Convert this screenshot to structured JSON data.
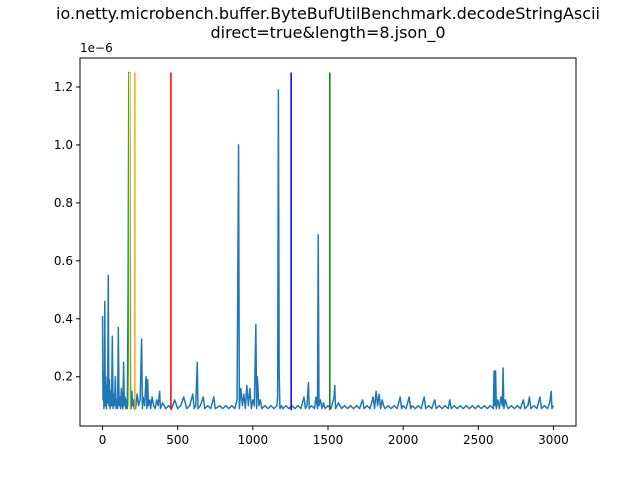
{
  "chart_data": {
    "type": "line",
    "title_lines": [
      "io.netty.microbench.buffer.ByteBufUtilBenchmark.decodeStringAscii",
      "direct=true&length=8.json_0"
    ],
    "xlabel": "",
    "ylabel": "",
    "y_offset_label": "1e−6",
    "xlim": [
      -150,
      3150
    ],
    "ylim": [
      0.03,
      1.3
    ],
    "x_ticks": [
      0,
      500,
      1000,
      1500,
      2000,
      2500,
      3000
    ],
    "x_tick_labels": [
      "0",
      "500",
      "1000",
      "1500",
      "2000",
      "2500",
      "3000"
    ],
    "y_ticks": [
      0.2,
      0.4,
      0.6,
      0.8,
      1.0,
      1.2
    ],
    "y_tick_labels": [
      "0.2",
      "0.4",
      "0.6",
      "0.8",
      "1.0",
      "1.2"
    ],
    "grid": false,
    "series": [
      {
        "color": "#1f77b4",
        "points": [
          [
            0,
            0.41
          ],
          [
            3,
            0.12
          ],
          [
            6,
            0.22
          ],
          [
            9,
            0.09
          ],
          [
            12,
            0.15
          ],
          [
            15,
            0.46
          ],
          [
            18,
            0.1
          ],
          [
            22,
            0.2
          ],
          [
            26,
            0.09
          ],
          [
            30,
            0.17
          ],
          [
            34,
            0.11
          ],
          [
            38,
            0.55
          ],
          [
            42,
            0.1
          ],
          [
            46,
            0.19
          ],
          [
            50,
            0.09
          ],
          [
            55,
            0.15
          ],
          [
            60,
            0.1
          ],
          [
            65,
            0.34
          ],
          [
            70,
            0.09
          ],
          [
            75,
            0.14
          ],
          [
            80,
            0.1
          ],
          [
            85,
            0.2
          ],
          [
            90,
            0.09
          ],
          [
            95,
            0.12
          ],
          [
            100,
            0.09
          ],
          [
            105,
            0.37
          ],
          [
            110,
            0.1
          ],
          [
            115,
            0.13
          ],
          [
            120,
            0.09
          ],
          [
            125,
            0.16
          ],
          [
            130,
            0.1
          ],
          [
            135,
            0.09
          ],
          [
            140,
            0.25
          ],
          [
            145,
            0.1
          ],
          [
            150,
            0.13
          ],
          [
            155,
            0.09
          ],
          [
            160,
            0.12
          ],
          [
            165,
            0.09
          ],
          [
            170,
            0.5
          ],
          [
            175,
            1.25
          ],
          [
            178,
            0.1
          ],
          [
            182,
            1.25
          ],
          [
            186,
            0.12
          ],
          [
            190,
            0.09
          ],
          [
            195,
            0.15
          ],
          [
            200,
            0.1
          ],
          [
            205,
            0.12
          ],
          [
            210,
            0.09
          ],
          [
            215,
            0.11
          ],
          [
            220,
            0.09
          ],
          [
            230,
            0.14
          ],
          [
            240,
            0.1
          ],
          [
            250,
            0.12
          ],
          [
            260,
            0.33
          ],
          [
            265,
            0.09
          ],
          [
            270,
            0.13
          ],
          [
            280,
            0.1
          ],
          [
            290,
            0.2
          ],
          [
            295,
            0.09
          ],
          [
            300,
            0.19
          ],
          [
            305,
            0.1
          ],
          [
            315,
            0.12
          ],
          [
            320,
            0.09
          ],
          [
            330,
            0.13
          ],
          [
            340,
            0.1
          ],
          [
            350,
            0.09
          ],
          [
            360,
            0.12
          ],
          [
            370,
            0.1
          ],
          [
            380,
            0.15
          ],
          [
            385,
            0.09
          ],
          [
            400,
            0.11
          ],
          [
            420,
            0.09
          ],
          [
            440,
            0.1
          ],
          [
            460,
            0.09
          ],
          [
            480,
            0.12
          ],
          [
            500,
            0.09
          ],
          [
            520,
            0.1
          ],
          [
            540,
            0.13
          ],
          [
            560,
            0.09
          ],
          [
            580,
            0.1
          ],
          [
            600,
            0.14
          ],
          [
            610,
            0.09
          ],
          [
            620,
            0.1
          ],
          [
            630,
            0.25
          ],
          [
            635,
            0.09
          ],
          [
            650,
            0.1
          ],
          [
            670,
            0.13
          ],
          [
            680,
            0.09
          ],
          [
            700,
            0.1
          ],
          [
            720,
            0.09
          ],
          [
            740,
            0.13
          ],
          [
            750,
            0.09
          ],
          [
            780,
            0.1
          ],
          [
            800,
            0.09
          ],
          [
            820,
            0.1
          ],
          [
            840,
            0.09
          ],
          [
            860,
            0.1
          ],
          [
            880,
            0.09
          ],
          [
            895,
            0.12
          ],
          [
            905,
            1.0
          ],
          [
            910,
            0.09
          ],
          [
            920,
            0.16
          ],
          [
            930,
            0.1
          ],
          [
            940,
            0.14
          ],
          [
            950,
            0.09
          ],
          [
            960,
            0.17
          ],
          [
            970,
            0.1
          ],
          [
            980,
            0.16
          ],
          [
            990,
            0.09
          ],
          [
            1000,
            0.12
          ],
          [
            1010,
            0.1
          ],
          [
            1020,
            0.38
          ],
          [
            1025,
            0.09
          ],
          [
            1030,
            0.2
          ],
          [
            1040,
            0.1
          ],
          [
            1050,
            0.12
          ],
          [
            1060,
            0.09
          ],
          [
            1080,
            0.1
          ],
          [
            1100,
            0.09
          ],
          [
            1120,
            0.1
          ],
          [
            1140,
            0.09
          ],
          [
            1160,
            0.1
          ],
          [
            1165,
            0.13
          ],
          [
            1170,
            1.19
          ],
          [
            1175,
            0.22
          ],
          [
            1180,
            0.09
          ],
          [
            1190,
            0.1
          ],
          [
            1200,
            0.09
          ],
          [
            1220,
            0.1
          ],
          [
            1240,
            0.09
          ],
          [
            1260,
            0.1
          ],
          [
            1280,
            0.09
          ],
          [
            1300,
            0.1
          ],
          [
            1320,
            0.09
          ],
          [
            1340,
            0.13
          ],
          [
            1350,
            0.09
          ],
          [
            1360,
            0.1
          ],
          [
            1370,
            0.18
          ],
          [
            1375,
            0.09
          ],
          [
            1390,
            0.1
          ],
          [
            1410,
            0.09
          ],
          [
            1420,
            0.13
          ],
          [
            1430,
            0.09
          ],
          [
            1435,
            0.69
          ],
          [
            1440,
            0.1
          ],
          [
            1450,
            0.12
          ],
          [
            1460,
            0.09
          ],
          [
            1470,
            0.11
          ],
          [
            1480,
            0.09
          ],
          [
            1500,
            0.1
          ],
          [
            1520,
            0.09
          ],
          [
            1540,
            0.13
          ],
          [
            1545,
            0.17
          ],
          [
            1550,
            0.09
          ],
          [
            1570,
            0.11
          ],
          [
            1590,
            0.09
          ],
          [
            1610,
            0.1
          ],
          [
            1630,
            0.09
          ],
          [
            1650,
            0.1
          ],
          [
            1670,
            0.09
          ],
          [
            1690,
            0.1
          ],
          [
            1710,
            0.09
          ],
          [
            1730,
            0.12
          ],
          [
            1740,
            0.09
          ],
          [
            1760,
            0.1
          ],
          [
            1780,
            0.09
          ],
          [
            1800,
            0.13
          ],
          [
            1810,
            0.09
          ],
          [
            1820,
            0.15
          ],
          [
            1830,
            0.1
          ],
          [
            1840,
            0.14
          ],
          [
            1850,
            0.09
          ],
          [
            1860,
            0.12
          ],
          [
            1870,
            0.1
          ],
          [
            1880,
            0.09
          ],
          [
            1900,
            0.1
          ],
          [
            1920,
            0.09
          ],
          [
            1940,
            0.1
          ],
          [
            1960,
            0.09
          ],
          [
            1980,
            0.13
          ],
          [
            1990,
            0.09
          ],
          [
            2000,
            0.1
          ],
          [
            2020,
            0.09
          ],
          [
            2040,
            0.13
          ],
          [
            2050,
            0.09
          ],
          [
            2060,
            0.1
          ],
          [
            2080,
            0.09
          ],
          [
            2100,
            0.1
          ],
          [
            2120,
            0.09
          ],
          [
            2140,
            0.13
          ],
          [
            2150,
            0.09
          ],
          [
            2170,
            0.1
          ],
          [
            2190,
            0.09
          ],
          [
            2210,
            0.12
          ],
          [
            2220,
            0.09
          ],
          [
            2240,
            0.1
          ],
          [
            2260,
            0.09
          ],
          [
            2280,
            0.1
          ],
          [
            2300,
            0.09
          ],
          [
            2310,
            0.12
          ],
          [
            2320,
            0.09
          ],
          [
            2340,
            0.1
          ],
          [
            2360,
            0.09
          ],
          [
            2380,
            0.1
          ],
          [
            2400,
            0.09
          ],
          [
            2420,
            0.1
          ],
          [
            2440,
            0.09
          ],
          [
            2460,
            0.1
          ],
          [
            2480,
            0.09
          ],
          [
            2500,
            0.1
          ],
          [
            2520,
            0.09
          ],
          [
            2540,
            0.1
          ],
          [
            2560,
            0.09
          ],
          [
            2580,
            0.1
          ],
          [
            2600,
            0.09
          ],
          [
            2605,
            0.22
          ],
          [
            2610,
            0.1
          ],
          [
            2615,
            0.22
          ],
          [
            2620,
            0.09
          ],
          [
            2630,
            0.12
          ],
          [
            2640,
            0.09
          ],
          [
            2650,
            0.13
          ],
          [
            2660,
            0.1
          ],
          [
            2665,
            0.23
          ],
          [
            2670,
            0.09
          ],
          [
            2680,
            0.12
          ],
          [
            2690,
            0.1
          ],
          [
            2700,
            0.09
          ],
          [
            2720,
            0.1
          ],
          [
            2740,
            0.09
          ],
          [
            2760,
            0.1
          ],
          [
            2780,
            0.09
          ],
          [
            2800,
            0.12
          ],
          [
            2810,
            0.09
          ],
          [
            2830,
            0.1
          ],
          [
            2840,
            0.13
          ],
          [
            2850,
            0.09
          ],
          [
            2870,
            0.1
          ],
          [
            2890,
            0.09
          ],
          [
            2910,
            0.13
          ],
          [
            2920,
            0.09
          ],
          [
            2940,
            0.1
          ],
          [
            2960,
            0.09
          ],
          [
            2975,
            0.11
          ],
          [
            2985,
            0.15
          ],
          [
            2990,
            0.09
          ],
          [
            3000,
            0.1
          ]
        ]
      }
    ],
    "vertical_lines": [
      {
        "x": 180,
        "color": "#ffff00",
        "ymin": 0.085,
        "ymax": 1.25
      },
      {
        "x": 215,
        "color": "#ffa500",
        "ymin": 0.085,
        "ymax": 1.25
      },
      {
        "x": 455,
        "color": "#ff0000",
        "ymin": 0.085,
        "ymax": 1.25
      },
      {
        "x": 1255,
        "color": "#0000ff",
        "ymin": 0.085,
        "ymax": 1.25
      },
      {
        "x": 1512,
        "color": "#008000",
        "ymin": 0.085,
        "ymax": 1.25
      }
    ]
  }
}
